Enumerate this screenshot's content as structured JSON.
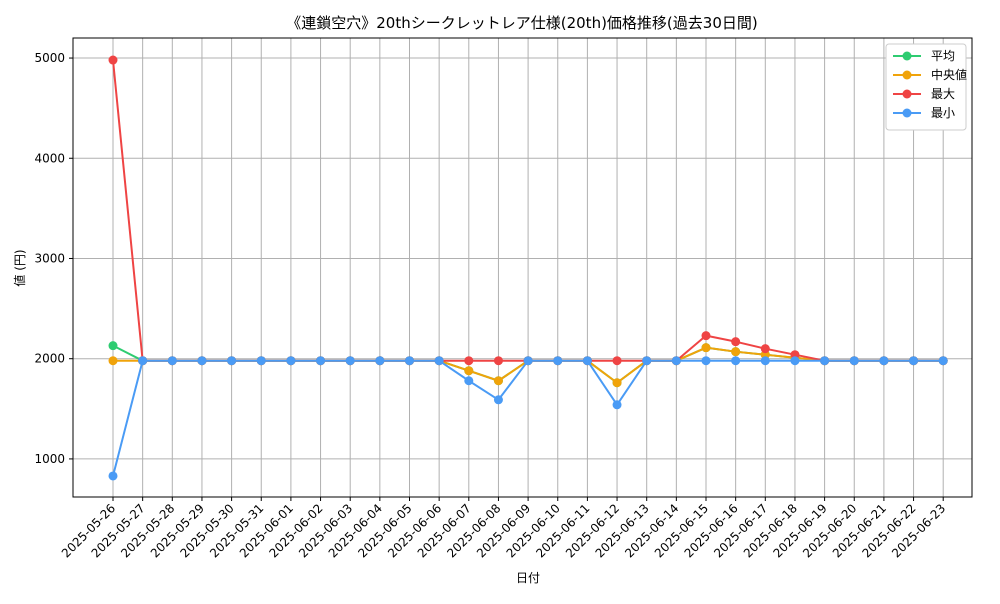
{
  "chart_data": {
    "type": "line",
    "title": "《連鎖空穴》20thシークレットレア仕様(20th)価格推移(過去30日間)",
    "xlabel": "日付",
    "ylabel": "値 (円)",
    "ylim": [
      620,
      5200
    ],
    "yticks": [
      1000,
      2000,
      3000,
      4000,
      5000
    ],
    "grid": true,
    "legend_position": "top-right",
    "categories": [
      "2025-05-26",
      "2025-05-27",
      "2025-05-28",
      "2025-05-29",
      "2025-05-30",
      "2025-05-31",
      "2025-06-01",
      "2025-06-02",
      "2025-06-03",
      "2025-06-04",
      "2025-06-05",
      "2025-06-06",
      "2025-06-07",
      "2025-06-08",
      "2025-06-09",
      "2025-06-10",
      "2025-06-11",
      "2025-06-12",
      "2025-06-13",
      "2025-06-14",
      "2025-06-15",
      "2025-06-16",
      "2025-06-17",
      "2025-06-18",
      "2025-06-19",
      "2025-06-20",
      "2025-06-21",
      "2025-06-22",
      "2025-06-23"
    ],
    "series": [
      {
        "name": "平均",
        "color": "#2ecc71",
        "values": [
          2130,
          1980,
          1980,
          1980,
          1980,
          1980,
          1980,
          1980,
          1980,
          1980,
          1980,
          1980,
          1880,
          1780,
          1980,
          1980,
          1980,
          1760,
          1980,
          1980,
          2110,
          2070,
          2040,
          2010,
          1980,
          1980,
          1980,
          1980,
          1980
        ]
      },
      {
        "name": "中央値",
        "color": "#f0a30a",
        "values": [
          1980,
          1980,
          1980,
          1980,
          1980,
          1980,
          1980,
          1980,
          1980,
          1980,
          1980,
          1980,
          1880,
          1780,
          1980,
          1980,
          1980,
          1760,
          1980,
          1980,
          2110,
          2070,
          2040,
          2010,
          1980,
          1980,
          1980,
          1980,
          1980
        ]
      },
      {
        "name": "最大",
        "color": "#ef4444",
        "values": [
          4980,
          1980,
          1980,
          1980,
          1980,
          1980,
          1980,
          1980,
          1980,
          1980,
          1980,
          1980,
          1980,
          1980,
          1980,
          1980,
          1980,
          1980,
          1980,
          1980,
          2230,
          2170,
          2100,
          2040,
          1980,
          1980,
          1980,
          1980,
          1980
        ]
      },
      {
        "name": "最小",
        "color": "#4a9bf5",
        "values": [
          830,
          1980,
          1980,
          1980,
          1980,
          1980,
          1980,
          1980,
          1980,
          1980,
          1980,
          1980,
          1780,
          1590,
          1980,
          1980,
          1980,
          1540,
          1980,
          1980,
          1980,
          1980,
          1980,
          1980,
          1980,
          1980,
          1980,
          1980,
          1980
        ]
      }
    ]
  }
}
